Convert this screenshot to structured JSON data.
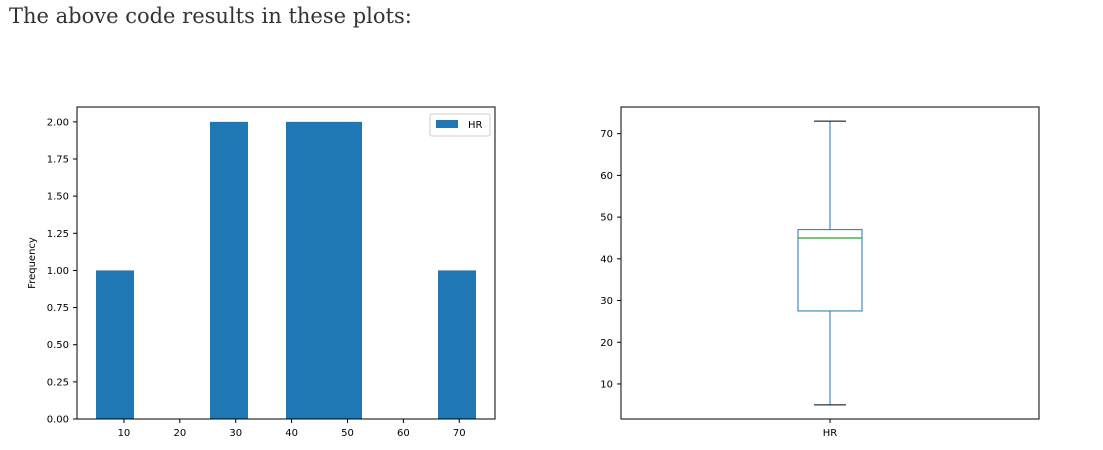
{
  "heading": "The above code results in these plots:",
  "chart_data": [
    {
      "type": "bar",
      "subtype": "histogram",
      "color": "#1f77b4",
      "bins": [
        {
          "x0": 5.0,
          "x1": 11.8,
          "count": 1
        },
        {
          "x0": 11.8,
          "x1": 18.6,
          "count": 0
        },
        {
          "x0": 18.6,
          "x1": 25.4,
          "count": 0
        },
        {
          "x0": 25.4,
          "x1": 32.2,
          "count": 2
        },
        {
          "x0": 32.2,
          "x1": 39.0,
          "count": 0
        },
        {
          "x0": 39.0,
          "x1": 45.8,
          "count": 2
        },
        {
          "x0": 45.8,
          "x1": 52.6,
          "count": 2
        },
        {
          "x0": 52.6,
          "x1": 59.4,
          "count": 0
        },
        {
          "x0": 59.4,
          "x1": 66.2,
          "count": 0
        },
        {
          "x0": 66.2,
          "x1": 73.0,
          "count": 1
        }
      ],
      "xlim": [
        1.6,
        76.4
      ],
      "ylim": [
        0,
        2.1
      ],
      "xticks": [
        10,
        20,
        30,
        40,
        50,
        60,
        70
      ],
      "yticks": [
        0.0,
        0.25,
        0.5,
        0.75,
        1.0,
        1.25,
        1.5,
        1.75,
        2.0
      ],
      "ytick_labels": [
        "0.00",
        "0.25",
        "0.50",
        "0.75",
        "1.00",
        "1.25",
        "1.50",
        "1.75",
        "2.00"
      ],
      "ylabel": "Frequency",
      "legend": {
        "label": "HR",
        "placement": "top-right"
      }
    },
    {
      "type": "box",
      "category": "HR",
      "box_color": "#1f77b4",
      "median_color": "#2ca02c",
      "whisker_low": 5,
      "q1": 27.5,
      "median": 45,
      "q3": 47,
      "whisker_high": 73,
      "ylim": [
        1.6,
        76.4
      ],
      "yticks": [
        10,
        20,
        30,
        40,
        50,
        60,
        70
      ]
    }
  ]
}
